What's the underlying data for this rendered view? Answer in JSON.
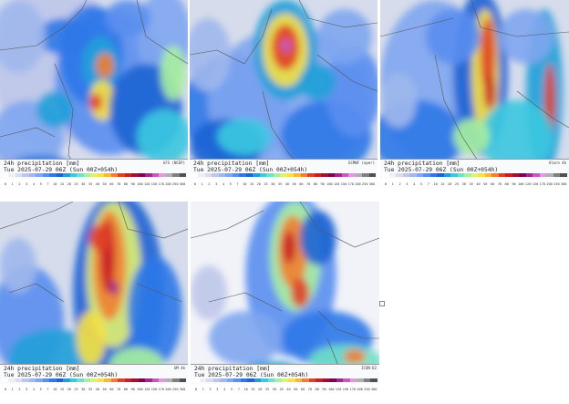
{
  "panels": [
    {
      "id": "p1",
      "line1": "24h precipitation [mm]",
      "model": "GFS (NCEP)",
      "line2": "Tue 2025-07-29 06Z (Sun 00Z+054h)"
    },
    {
      "id": "p2",
      "line1": "24h precipitation [mm]",
      "model": "ECMWF (oper)",
      "line2": "Tue 2025-07-29 06Z (Sun 00Z+054h)"
    },
    {
      "id": "p3",
      "line1": "24h precipitation [mm]",
      "model": "Alaro 4k",
      "line2": "Tue 2025-07-29 06Z (Sun 00Z+054h)"
    },
    {
      "id": "p4",
      "line1": "24h precipitation [mm]",
      "model": "UM 4k",
      "line2": "Tue 2025-07-29 06Z (Sun 00Z+054h)"
    },
    {
      "id": "p5",
      "line1": "24h precipitation [mm]",
      "model": "ICON-D2",
      "line2": "Tue 2025-07-29 06Z (Sun 00Z+054h)"
    }
  ],
  "legend": {
    "ticks": [
      "0",
      "1",
      "2",
      "3",
      "4",
      "5",
      "7",
      "10",
      "15",
      "20",
      "25",
      "30",
      "35",
      "40",
      "50",
      "60",
      "70",
      "80",
      "90",
      "100",
      "120",
      "150",
      "170",
      "200",
      "250",
      "300"
    ],
    "colors": [
      "#ffffff",
      "#eeeef8",
      "#d9dcf0",
      "#bfc6ea",
      "#a0b8ec",
      "#7fa6f0",
      "#5a8ef0",
      "#2f78e8",
      "#1c64d4",
      "#20a0d8",
      "#3cc8e0",
      "#70e0c8",
      "#a8f0a0",
      "#e0f070",
      "#f8e040",
      "#f8b830",
      "#f08030",
      "#e04028",
      "#c81e28",
      "#a01030",
      "#800050",
      "#a02890",
      "#c858c0",
      "#e098e0",
      "#b0b0b0",
      "#808080",
      "#505050"
    ]
  }
}
